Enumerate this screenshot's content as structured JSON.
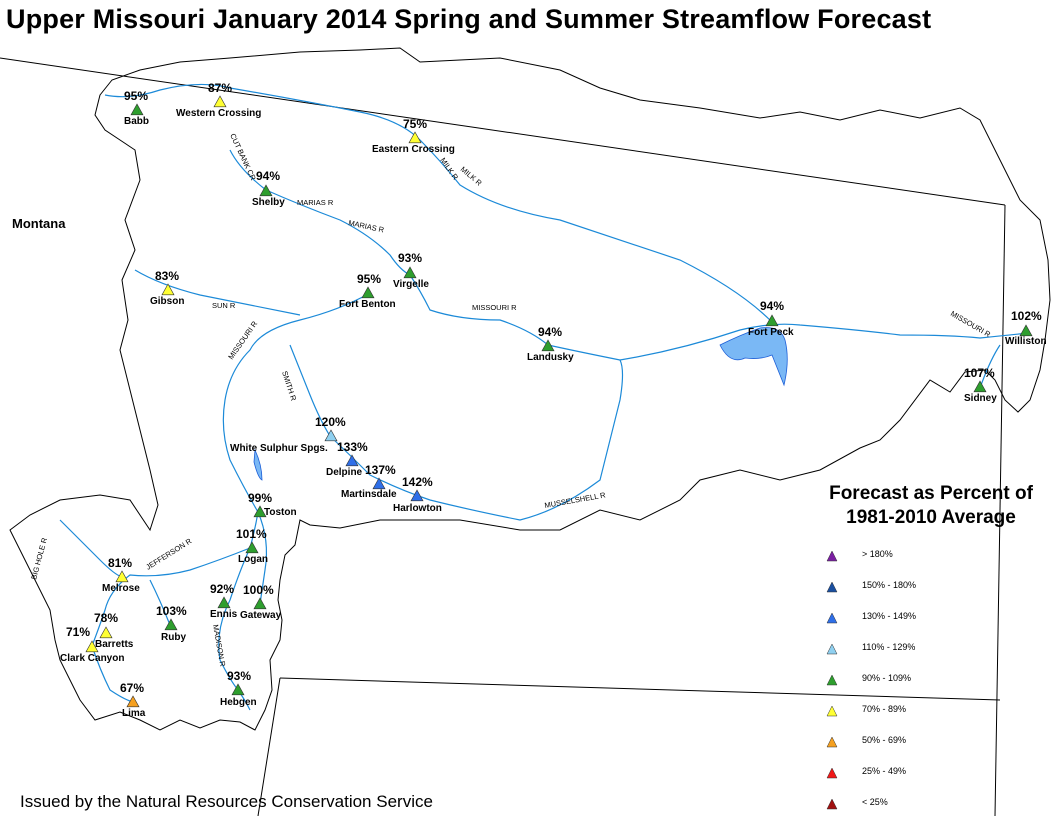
{
  "title": "Upper Missouri January 2014 Spring and Summer Streamflow Forecast",
  "state_label": "Montana",
  "footer": "Issued by the Natural Resources Conservation Service",
  "legend": {
    "title_line1": "Forecast as Percent of",
    "title_line2": "1981-2010 Average",
    "classes": [
      {
        "label": "> 180%",
        "color": "#7b1fa2"
      },
      {
        "label": "150% - 180%",
        "color": "#1a4fa0"
      },
      {
        "label": "130% - 149%",
        "color": "#2f6fe8"
      },
      {
        "label": "110% - 129%",
        "color": "#8fd0f0"
      },
      {
        "label": "90% - 109%",
        "color": "#2e9e2e"
      },
      {
        "label": "70% - 89%",
        "color": "#ffff33"
      },
      {
        "label": "50% - 69%",
        "color": "#f5a020"
      },
      {
        "label": "25% - 49%",
        "color": "#f01818"
      },
      {
        "label": "< 25%",
        "color": "#a01010"
      }
    ]
  },
  "sites": [
    {
      "name": "Babb",
      "pct": "95%",
      "cls": 4
    },
    {
      "name": "Western Crossing",
      "pct": "87%",
      "cls": 5
    },
    {
      "name": "Eastern Crossing",
      "pct": "75%",
      "cls": 5
    },
    {
      "name": "Shelby",
      "pct": "94%",
      "cls": 4
    },
    {
      "name": "Virgelle",
      "pct": "93%",
      "cls": 4
    },
    {
      "name": "Fort Benton",
      "pct": "95%",
      "cls": 4
    },
    {
      "name": "Gibson",
      "pct": "83%",
      "cls": 5
    },
    {
      "name": "Landusky",
      "pct": "94%",
      "cls": 4
    },
    {
      "name": "Fort Peck",
      "pct": "94%",
      "cls": 4
    },
    {
      "name": "Williston",
      "pct": "102%",
      "cls": 4
    },
    {
      "name": "Sidney",
      "pct": "107%",
      "cls": 4
    },
    {
      "name": "White Sulphur Spgs.",
      "pct": "120%",
      "cls": 3
    },
    {
      "name": "Delpine",
      "pct": "133%",
      "cls": 2
    },
    {
      "name": "Martinsdale",
      "pct": "137%",
      "cls": 2
    },
    {
      "name": "Harlowton",
      "pct": "142%",
      "cls": 2
    },
    {
      "name": "Toston",
      "pct": "99%",
      "cls": 4
    },
    {
      "name": "Logan",
      "pct": "101%",
      "cls": 4
    },
    {
      "name": "Melrose",
      "pct": "81%",
      "cls": 5
    },
    {
      "name": "Ennis",
      "pct": "92%",
      "cls": 4
    },
    {
      "name": "Gateway",
      "pct": "100%",
      "cls": 4
    },
    {
      "name": "Barretts",
      "pct": "78%",
      "cls": 5
    },
    {
      "name": "Ruby",
      "pct": "103%",
      "cls": 4
    },
    {
      "name": "Clark Canyon",
      "pct": "71%",
      "cls": 5
    },
    {
      "name": "Lima",
      "pct": "67%",
      "cls": 6
    },
    {
      "name": "Hebgen",
      "pct": "93%",
      "cls": 4
    }
  ],
  "rivers": [
    "MARIAS R",
    "MARIAS R",
    "CUT BANK CR",
    "MILK R",
    "MILK R",
    "MISSOURI R",
    "MISSOURI R",
    "MISSOURI R",
    "SUN R",
    "SMITH R",
    "MUSSELSHELL R",
    "JEFFERSON R",
    "BIG HOLE R",
    "MADISON R"
  ]
}
